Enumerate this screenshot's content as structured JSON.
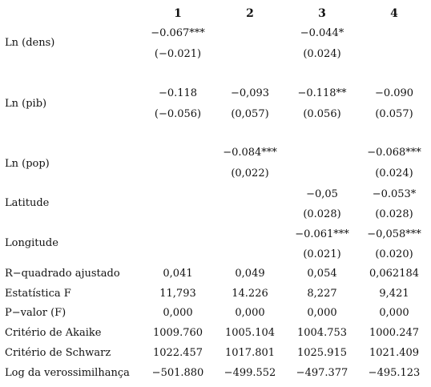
{
  "columns": [
    "1",
    "2",
    "3",
    "4"
  ],
  "rows": {
    "ln_dens": {
      "label": "Ln (dens)",
      "coef": [
        "−0.067***",
        "",
        "−0.044*",
        ""
      ],
      "se": [
        "(−0.021)",
        "",
        "(0.024)",
        ""
      ]
    },
    "ln_pib": {
      "label": "Ln (pib)",
      "coef": [
        "−0.118",
        "−0,093",
        "−0.118**",
        "−0.090"
      ],
      "se": [
        "(−0.056)",
        "(0,057)",
        "(0.056)",
        "(0.057)"
      ]
    },
    "ln_pop": {
      "label": "Ln (pop)",
      "coef": [
        "",
        "−0.084***",
        "",
        "−0.068***"
      ],
      "se": [
        "",
        "(0,022)",
        "",
        "(0.024)"
      ]
    },
    "latitude": {
      "label": "Latitude",
      "coef": [
        "",
        "",
        "−0,05",
        "−0.053*"
      ],
      "se": [
        "",
        "",
        "(0.028)",
        "(0.028)"
      ]
    },
    "longitude": {
      "label": "Longitude",
      "coef": [
        "",
        "",
        "−0.061***",
        "−0,058***"
      ],
      "se": [
        "",
        "",
        "(0.021)",
        "(0.020)"
      ]
    }
  },
  "stats": [
    {
      "label": "R−quadrado ajustado",
      "values": [
        "0,041",
        "0,049",
        "0,054",
        "0,062184"
      ]
    },
    {
      "label": "Estatística F",
      "values": [
        "11,793",
        "14.226",
        "8,227",
        "9,421"
      ]
    },
    {
      "label": "P−valor (F)",
      "values": [
        "0,000",
        "0,000",
        "0,000",
        "0,000"
      ]
    },
    {
      "label": "Critério de Akaike",
      "values": [
        "1009.760",
        "1005.104",
        "1004.753",
        "1000.247"
      ]
    },
    {
      "label": "Critério de Schwarz",
      "values": [
        "1022.457",
        "1017.801",
        "1025.915",
        "1021.409"
      ]
    },
    {
      "label": "Log da verossimilhança",
      "values": [
        "−501.880",
        "−499.552",
        "−497.377",
        "−495.123"
      ]
    }
  ]
}
